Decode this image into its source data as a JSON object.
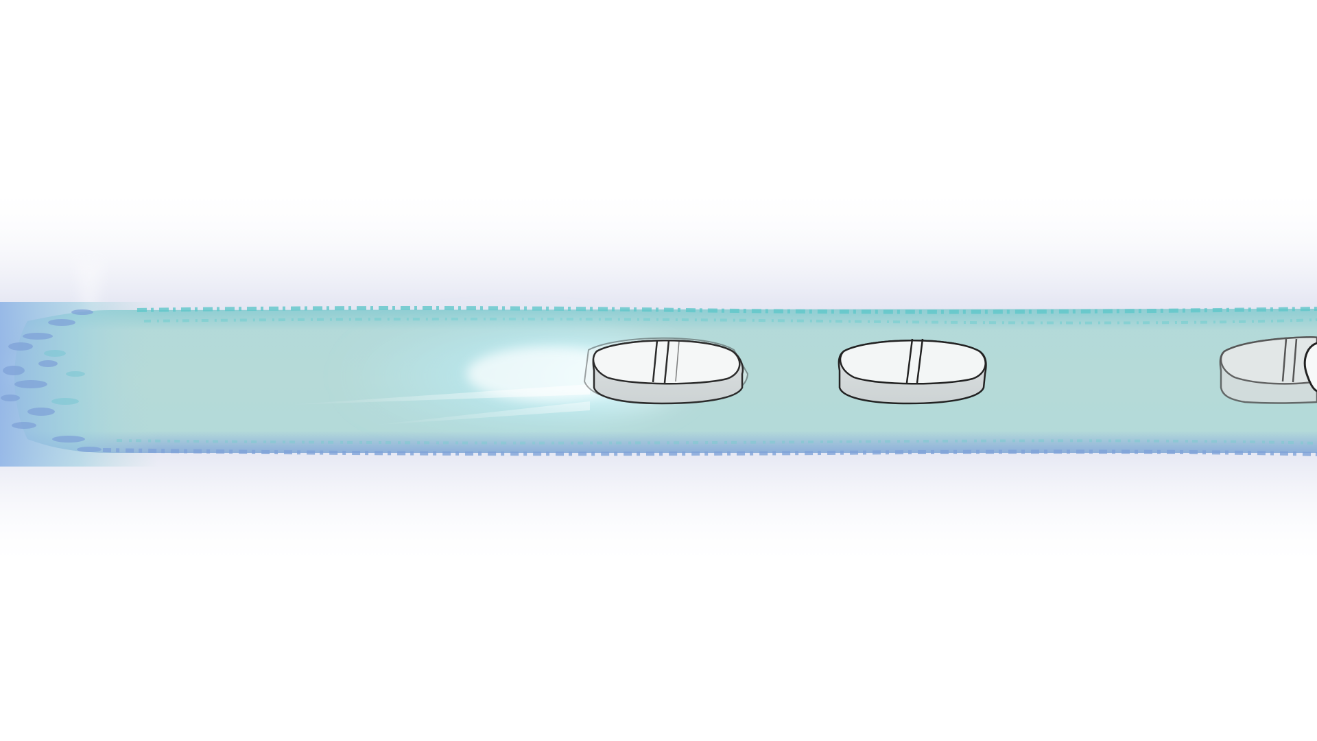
{
  "scene": {
    "subject": "pills-moving-through-tube",
    "pill_count_visible": 3,
    "colors": {
      "background": "#ffffff",
      "haze": "#c9cde6",
      "stream_body": "#a9d4d6",
      "stream_edge": "#5fc7c9",
      "stream_speckle": "#7fa2d8",
      "glow": "#ffffff",
      "glow_tint": "#bdf2ff",
      "pill_fill": "#e9eced",
      "pill_top": "#f4f6f6",
      "pill_outline": "#222222"
    },
    "icons": [
      "pill-icon",
      "motion-trail",
      "light-beam"
    ]
  }
}
